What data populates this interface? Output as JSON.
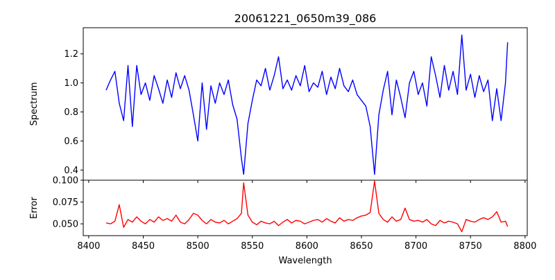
{
  "chart_data": [
    {
      "type": "line",
      "title": "20061221_0650m39_086",
      "xlabel": "",
      "ylabel": "Spectrum",
      "xlim": [
        8395,
        8802
      ],
      "ylim": [
        0.33,
        1.38
      ],
      "yticks": [
        "0.4",
        "0.6",
        "0.8",
        "1.0",
        "1.2"
      ],
      "ytick_values": [
        0.4,
        0.6,
        0.8,
        1.0,
        1.2
      ],
      "color": "#0000ff",
      "series_name": "spectrum"
    },
    {
      "type": "line",
      "xlabel": "Wavelength",
      "ylabel": "Error",
      "xlim": [
        8395,
        8802
      ],
      "ylim": [
        0.0365,
        0.1
      ],
      "yticks": [
        "0.050",
        "0.075",
        "0.100"
      ],
      "ytick_values": [
        0.05,
        0.075,
        0.1
      ],
      "xticks": [
        "8400",
        "8450",
        "8500",
        "8550",
        "8600",
        "8650",
        "8700",
        "8750",
        "8800"
      ],
      "xtick_values": [
        8400,
        8450,
        8500,
        8550,
        8600,
        8650,
        8700,
        8750,
        8800
      ],
      "color": "#ff0000",
      "series_name": "error"
    }
  ],
  "x": [
    8416,
    8420,
    8424,
    8428,
    8432,
    8436,
    8440,
    8444,
    8448,
    8452,
    8456,
    8460,
    8464,
    8468,
    8472,
    8476,
    8480,
    8484,
    8488,
    8492,
    8496,
    8500,
    8504,
    8508,
    8512,
    8516,
    8520,
    8524,
    8528,
    8532,
    8536,
    8540,
    8542,
    8546,
    8550,
    8554,
    8558,
    8562,
    8566,
    8570,
    8574,
    8578,
    8582,
    8586,
    8590,
    8594,
    8598,
    8602,
    8606,
    8610,
    8614,
    8618,
    8622,
    8626,
    8630,
    8634,
    8638,
    8642,
    8646,
    8650,
    8654,
    8658,
    8662,
    8666,
    8670,
    8674,
    8678,
    8682,
    8686,
    8690,
    8694,
    8698,
    8702,
    8706,
    8710,
    8714,
    8718,
    8722,
    8726,
    8730,
    8734,
    8738,
    8742,
    8746,
    8750,
    8754,
    8758,
    8762,
    8766,
    8770,
    8774,
    8778,
    8782,
    8784
  ],
  "spectrum": [
    0.95,
    1.02,
    1.08,
    0.86,
    0.74,
    1.12,
    0.7,
    1.12,
    0.92,
    1.0,
    0.88,
    1.05,
    0.96,
    0.86,
    1.02,
    0.9,
    1.07,
    0.96,
    1.05,
    0.95,
    0.78,
    0.6,
    1.0,
    0.68,
    0.98,
    0.86,
    1.0,
    0.92,
    1.02,
    0.85,
    0.75,
    0.48,
    0.37,
    0.72,
    0.88,
    1.02,
    0.98,
    1.1,
    0.95,
    1.05,
    1.18,
    0.96,
    1.02,
    0.95,
    1.05,
    0.98,
    1.12,
    0.94,
    1.0,
    0.97,
    1.08,
    0.92,
    1.04,
    0.96,
    1.1,
    0.98,
    0.94,
    1.02,
    0.92,
    0.88,
    0.84,
    0.7,
    0.37,
    0.78,
    0.95,
    1.08,
    0.78,
    1.02,
    0.9,
    0.76,
    1.0,
    1.08,
    0.92,
    1.0,
    0.84,
    1.18,
    1.05,
    0.9,
    1.12,
    0.95,
    1.08,
    0.92,
    1.33,
    0.95,
    1.06,
    0.9,
    1.05,
    0.94,
    1.02,
    0.74,
    0.96,
    0.74,
    1.0,
    1.28
  ],
  "error": [
    0.051,
    0.05,
    0.053,
    0.072,
    0.046,
    0.055,
    0.052,
    0.058,
    0.053,
    0.05,
    0.055,
    0.052,
    0.058,
    0.054,
    0.056,
    0.053,
    0.06,
    0.052,
    0.05,
    0.055,
    0.062,
    0.06,
    0.054,
    0.05,
    0.055,
    0.052,
    0.051,
    0.054,
    0.05,
    0.053,
    0.056,
    0.062,
    0.097,
    0.06,
    0.052,
    0.049,
    0.053,
    0.051,
    0.05,
    0.053,
    0.048,
    0.052,
    0.055,
    0.051,
    0.054,
    0.053,
    0.05,
    0.052,
    0.054,
    0.055,
    0.052,
    0.056,
    0.053,
    0.051,
    0.057,
    0.053,
    0.055,
    0.054,
    0.057,
    0.059,
    0.06,
    0.063,
    0.099,
    0.062,
    0.055,
    0.052,
    0.058,
    0.053,
    0.055,
    0.068,
    0.055,
    0.053,
    0.054,
    0.052,
    0.055,
    0.05,
    0.048,
    0.054,
    0.051,
    0.053,
    0.052,
    0.05,
    0.041,
    0.055,
    0.053,
    0.052,
    0.055,
    0.057,
    0.055,
    0.058,
    0.064,
    0.052,
    0.053,
    0.047
  ]
}
